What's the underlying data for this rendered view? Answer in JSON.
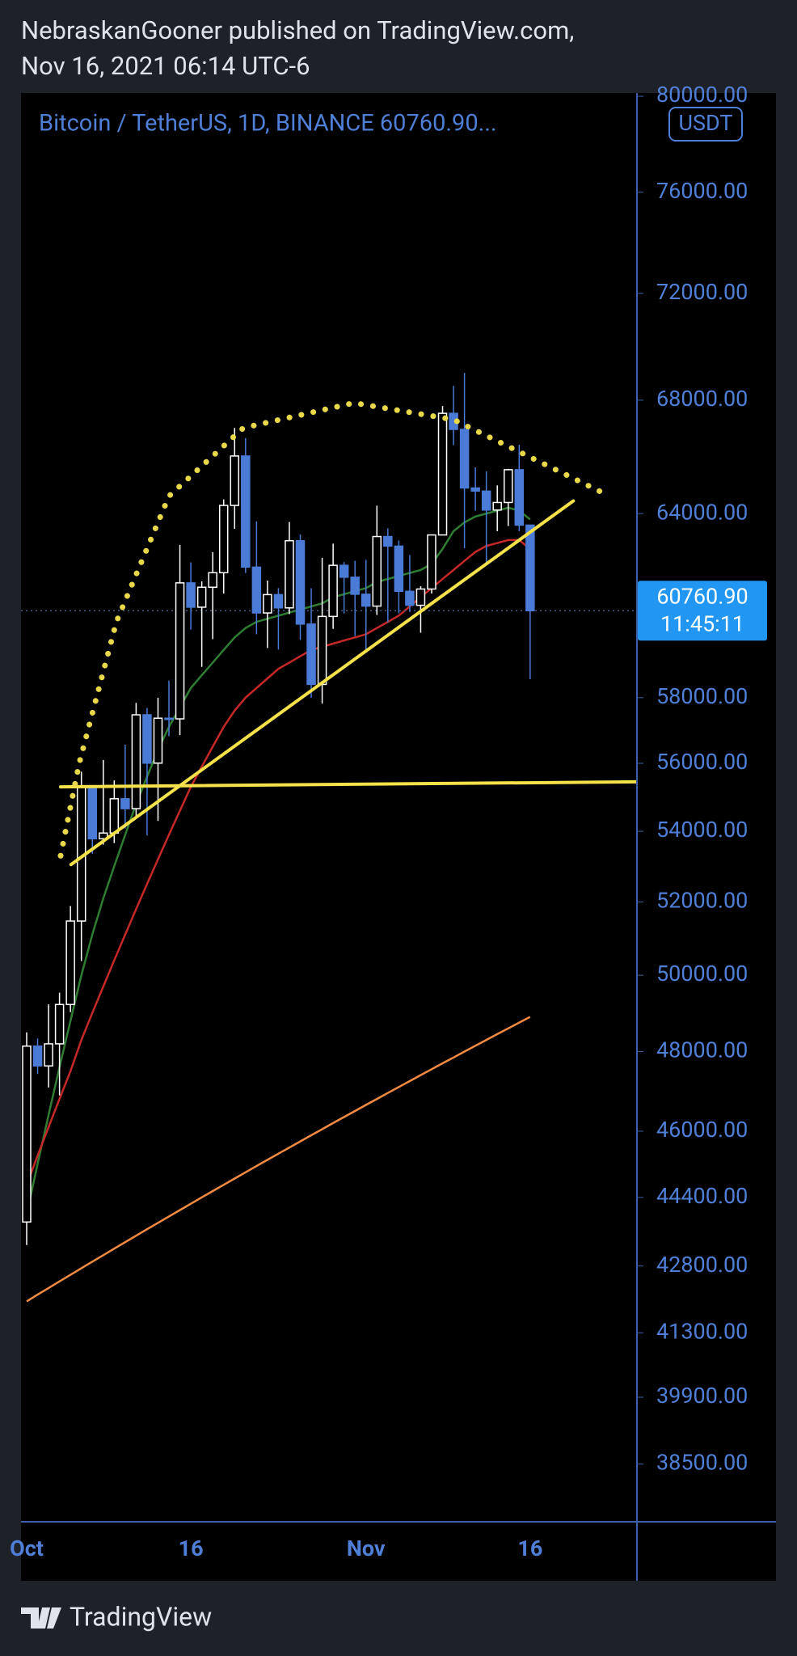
{
  "header": {
    "line1": "NebraskanGooner published on TradingView.com,",
    "line2": "Nov 16, 2021 06:14 UTC-6"
  },
  "footer": {
    "brand": "TradingView"
  },
  "chart_data": {
    "type": "candlestick",
    "title": "Bitcoin / TetherUS, 1D, BINANCE  60760.90...",
    "currency": "USDT",
    "log_scale": true,
    "grid": false,
    "up_color": "#ffffff",
    "down_color": "#4a7bd6",
    "categories": [
      "Oct",
      null,
      null,
      null,
      null,
      null,
      null,
      null,
      null,
      null,
      null,
      null,
      null,
      null,
      null,
      "16",
      null,
      null,
      null,
      null,
      null,
      null,
      null,
      null,
      null,
      null,
      null,
      null,
      null,
      null,
      null,
      "Nov",
      null,
      null,
      null,
      null,
      null,
      null,
      null,
      null,
      null,
      null,
      null,
      null,
      null,
      null,
      "16"
    ],
    "open": [
      43820,
      48141,
      47634,
      48200,
      49224,
      51471,
      55315,
      53785,
      53951,
      54949,
      54659,
      57471,
      56005,
      57367,
      57347,
      61672,
      60875,
      61528,
      62009,
      64280,
      66001,
      62193,
      60688,
      61286,
      60853,
      63078,
      60328,
      58413,
      60575,
      62253,
      61859,
      61299,
      60911,
      63219,
      62896,
      61395,
      60937,
      61470,
      63273,
      67525,
      66947,
      64882,
      64774,
      64122,
      64380,
      65519,
      63606
    ],
    "high": [
      48495,
      48336,
      49228,
      49536,
      51886,
      55750,
      55338,
      56100,
      55490,
      56561,
      57839,
      57680,
      58000,
      58532,
      62933,
      62350,
      61720,
      62695,
      64486,
      67000,
      66639,
      63732,
      61747,
      61500,
      63711,
      63293,
      61496,
      62499,
      62980,
      62359,
      62405,
      62437,
      64270,
      63500,
      63086,
      62595,
      61560,
      63286,
      67789,
      68524,
      69000,
      65600,
      65460,
      64972,
      65550,
      66401,
      63617
    ],
    "low": [
      43283,
      47430,
      47088,
      46891,
      49022,
      50382,
      53357,
      53617,
      53661,
      54080,
      54415,
      53879,
      54300,
      56818,
      56850,
      60150,
      58963,
      59844,
      61322,
      63481,
      62000,
      60000,
      59562,
      59510,
      60650,
      59817,
      58000,
      57820,
      60174,
      60673,
      59945,
      59405,
      60624,
      60382,
      60677,
      60721,
      60050,
      61322,
      63273,
      66383,
      62822,
      64100,
      62333,
      63400,
      63576,
      63400,
      58574
    ],
    "close": [
      48141,
      47634,
      48200,
      49224,
      51471,
      55315,
      53785,
      53951,
      54949,
      54659,
      57471,
      56005,
      57367,
      57347,
      61672,
      60875,
      61528,
      62009,
      64280,
      66001,
      62193,
      60688,
      61286,
      60853,
      63078,
      60328,
      58413,
      60575,
      62253,
      61859,
      61299,
      60911,
      63219,
      62896,
      61395,
      60937,
      61470,
      63273,
      67525,
      66947,
      64882,
      64774,
      64122,
      64380,
      65519,
      63606,
      60760.9
    ],
    "last_price": {
      "value": 60760.9,
      "label": "60760.90"
    },
    "countdown": "11:45:11",
    "lines": [
      {
        "color": "#2e7d32",
        "values": [
          44000,
          45200,
          46400,
          47600,
          48800,
          50000,
          51100,
          52100,
          53000,
          53900,
          54800,
          55600,
          56400,
          57100,
          57700,
          58300,
          58700,
          59100,
          59500,
          59900,
          60200,
          60400,
          60500,
          60600,
          60700,
          60800,
          60900,
          61000,
          61200,
          61300,
          61400,
          61500,
          61700,
          61800,
          61900,
          62000,
          62100,
          62300,
          62800,
          63400,
          63700,
          63900,
          64000,
          64100,
          64200,
          64100,
          63800
        ]
      },
      {
        "color": "#c62828",
        "values": [
          44700,
          45400,
          46100,
          46800,
          47500,
          48300,
          49000,
          49700,
          50400,
          51100,
          51800,
          52500,
          53200,
          53900,
          54600,
          55300,
          55900,
          56500,
          57100,
          57600,
          58000,
          58300,
          58600,
          58900,
          59100,
          59300,
          59500,
          59600,
          59700,
          59800,
          59900,
          60000,
          60200,
          60400,
          60600,
          60900,
          61200,
          61500,
          61800,
          62100,
          62400,
          62700,
          62900,
          63000,
          63100,
          63100,
          62800
        ]
      },
      {
        "color": "#f58a42",
        "values": [
          42000,
          42150,
          42300,
          42450,
          42600,
          42750,
          42900,
          43050,
          43200,
          43350,
          43500,
          43650,
          43800,
          43950,
          44100,
          44250,
          44400,
          44550,
          44700,
          44850,
          45000,
          45150,
          45300,
          45450,
          45600,
          45750,
          45900,
          46050,
          46200,
          46350,
          46500,
          46650,
          46800,
          46950,
          47100,
          47250,
          47400,
          47550,
          47700,
          47850,
          48000,
          48150,
          48300,
          48450,
          48600,
          48750,
          48900
        ]
      }
    ],
    "drawings": [
      {
        "style": "solid",
        "color": "#f5e24a",
        "points": [
          [
            4.05,
            53050
          ],
          [
            49.95,
            64435
          ]
        ]
      },
      {
        "style": "solid",
        "color": "#f5e24a",
        "points": [
          [
            3.1,
            55300
          ],
          [
            56.2,
            55450
          ]
        ]
      },
      {
        "style": "dotted",
        "color": "#e8d84a",
        "points": [
          [
            3.1,
            53300
          ],
          [
            4.8,
            56000
          ],
          [
            8.2,
            60400
          ],
          [
            13,
            64600
          ],
          [
            19.8,
            67000
          ],
          [
            29.9,
            67900
          ],
          [
            39,
            67300
          ],
          [
            45.8,
            66000
          ],
          [
            53,
            64650
          ]
        ]
      }
    ],
    "ylim": [
      37330,
      80140
    ],
    "yticks": [
      {
        "value": 80000,
        "label": "80000.00"
      },
      {
        "value": 76000,
        "label": "76000.00"
      },
      {
        "value": 72000,
        "label": "72000.00"
      },
      {
        "value": 68000,
        "label": "68000.00"
      },
      {
        "value": 64000,
        "label": "64000.00"
      },
      {
        "value": 58000,
        "label": "58000.00"
      },
      {
        "value": 56000,
        "label": "56000.00"
      },
      {
        "value": 54000,
        "label": "54000.00"
      },
      {
        "value": 52000,
        "label": "52000.00"
      },
      {
        "value": 50000,
        "label": "50000.00"
      },
      {
        "value": 48000,
        "label": "48000.00"
      },
      {
        "value": 46000,
        "label": "46000.00"
      },
      {
        "value": 44400,
        "label": "44400.00"
      },
      {
        "value": 42800,
        "label": "42800.00"
      },
      {
        "value": 41300,
        "label": "41300.00"
      },
      {
        "value": 39900,
        "label": "39900.00"
      },
      {
        "value": 38500,
        "label": "38500.00"
      }
    ]
  }
}
